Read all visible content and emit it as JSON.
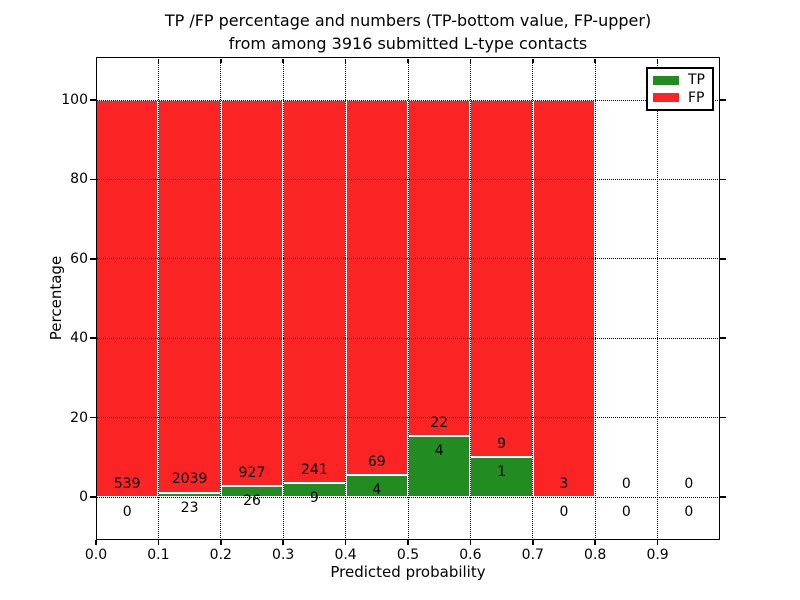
{
  "figure": {
    "title_line1": "TP /FP percentage and numbers (TP-bottom value, FP-upper)",
    "title_line2": "from among 3916 submitted L-type contacts",
    "xlabel": "Predicted probability",
    "ylabel": "Percentage"
  },
  "legend": {
    "items": [
      {
        "label": "TP",
        "color": "#228b22"
      },
      {
        "label": "FP",
        "color": "#fb2424"
      }
    ]
  },
  "chart_data": {
    "type": "bar",
    "stacked": true,
    "title": "TP /FP percentage and numbers (TP-bottom value, FP-upper) from among 3916 submitted L-type contacts",
    "xlabel": "Predicted probability",
    "ylabel": "Percentage",
    "total_submitted": 3916,
    "xlim": [
      0.0,
      1.0
    ],
    "ylim": [
      -10.8,
      110.8
    ],
    "grid": "dotted",
    "legend_position": "upper-right",
    "xticks": [
      "0.0",
      "0.1",
      "0.2",
      "0.3",
      "0.4",
      "0.5",
      "0.6",
      "0.7",
      "0.8",
      "0.9"
    ],
    "yticks": [
      0,
      20,
      40,
      60,
      80,
      100
    ],
    "bin_width": 0.1,
    "bins": [
      {
        "x_start": 0.0,
        "tp_count": 0,
        "fp_count": 539,
        "tp_pct": 0.0,
        "fp_pct": 100.0
      },
      {
        "x_start": 0.1,
        "tp_count": 23,
        "fp_count": 2039,
        "tp_pct": 1.12,
        "fp_pct": 98.88
      },
      {
        "x_start": 0.2,
        "tp_count": 26,
        "fp_count": 927,
        "tp_pct": 2.73,
        "fp_pct": 97.27
      },
      {
        "x_start": 0.3,
        "tp_count": 9,
        "fp_count": 241,
        "tp_pct": 3.6,
        "fp_pct": 96.4
      },
      {
        "x_start": 0.4,
        "tp_count": 4,
        "fp_count": 69,
        "tp_pct": 5.48,
        "fp_pct": 94.52
      },
      {
        "x_start": 0.5,
        "tp_count": 4,
        "fp_count": 22,
        "tp_pct": 15.38,
        "fp_pct": 84.62
      },
      {
        "x_start": 0.6,
        "tp_count": 1,
        "fp_count": 9,
        "tp_pct": 10.0,
        "fp_pct": 90.0
      },
      {
        "x_start": 0.7,
        "tp_count": 0,
        "fp_count": 3,
        "tp_pct": 0.0,
        "fp_pct": 100.0
      },
      {
        "x_start": 0.8,
        "tp_count": 0,
        "fp_count": 0,
        "tp_pct": 0.0,
        "fp_pct": 0.0
      },
      {
        "x_start": 0.9,
        "tp_count": 0,
        "fp_count": 0,
        "tp_pct": 0.0,
        "fp_pct": 0.0
      }
    ],
    "colors": {
      "tp": "#228b22",
      "fp": "#fb2424",
      "bar_edge": "#ffffff",
      "grid": "#000000"
    }
  }
}
